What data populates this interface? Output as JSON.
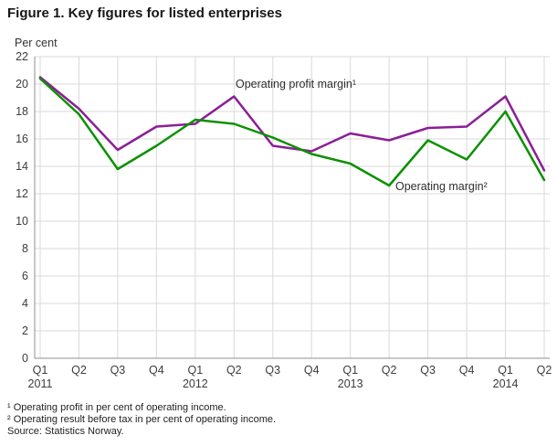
{
  "title": "Figure 1. Key figures for listed enterprises",
  "y_axis_title": "Per cent",
  "annotations": [
    {
      "text": "Operating profit margin¹"
    },
    {
      "text": "Operating margin²"
    }
  ],
  "footnotes": [
    "¹ Operating profit in per cent of operating income.",
    "² Operating result before tax in per cent of operating income.",
    "Source: Statistics Norway."
  ],
  "colors": {
    "operating_profit_margin": "#8b1f96",
    "operating_margin": "#0c9100",
    "grid": "#d9d9d9",
    "axis": "#8f8f8f"
  },
  "chart_data": {
    "type": "line",
    "tick_labels": [
      "Q1",
      "Q2",
      "Q3",
      "Q4",
      "Q1",
      "Q2",
      "Q3",
      "Q4",
      "Q1",
      "Q2",
      "Q3",
      "Q4",
      "Q1",
      "Q2"
    ],
    "year_labels": [
      {
        "index": 0,
        "label": "2011"
      },
      {
        "index": 4,
        "label": "2012"
      },
      {
        "index": 8,
        "label": "2013"
      },
      {
        "index": 12,
        "label": "2014"
      }
    ],
    "ylim": [
      0,
      22
    ],
    "ytick_step": 2,
    "grid": true,
    "legend_position": "inline-annotations",
    "series": [
      {
        "name": "Operating profit margin",
        "color": "#8b1f96",
        "values": [
          20.5,
          18.2,
          15.2,
          16.9,
          17.1,
          19.1,
          15.5,
          15.1,
          16.4,
          15.9,
          16.8,
          16.9,
          19.1,
          13.7
        ]
      },
      {
        "name": "Operating margin",
        "color": "#0c9100",
        "values": [
          20.4,
          17.8,
          13.8,
          15.5,
          17.4,
          17.1,
          16.1,
          14.9,
          14.2,
          12.6,
          15.9,
          14.5,
          18.0,
          13.0
        ]
      }
    ]
  }
}
